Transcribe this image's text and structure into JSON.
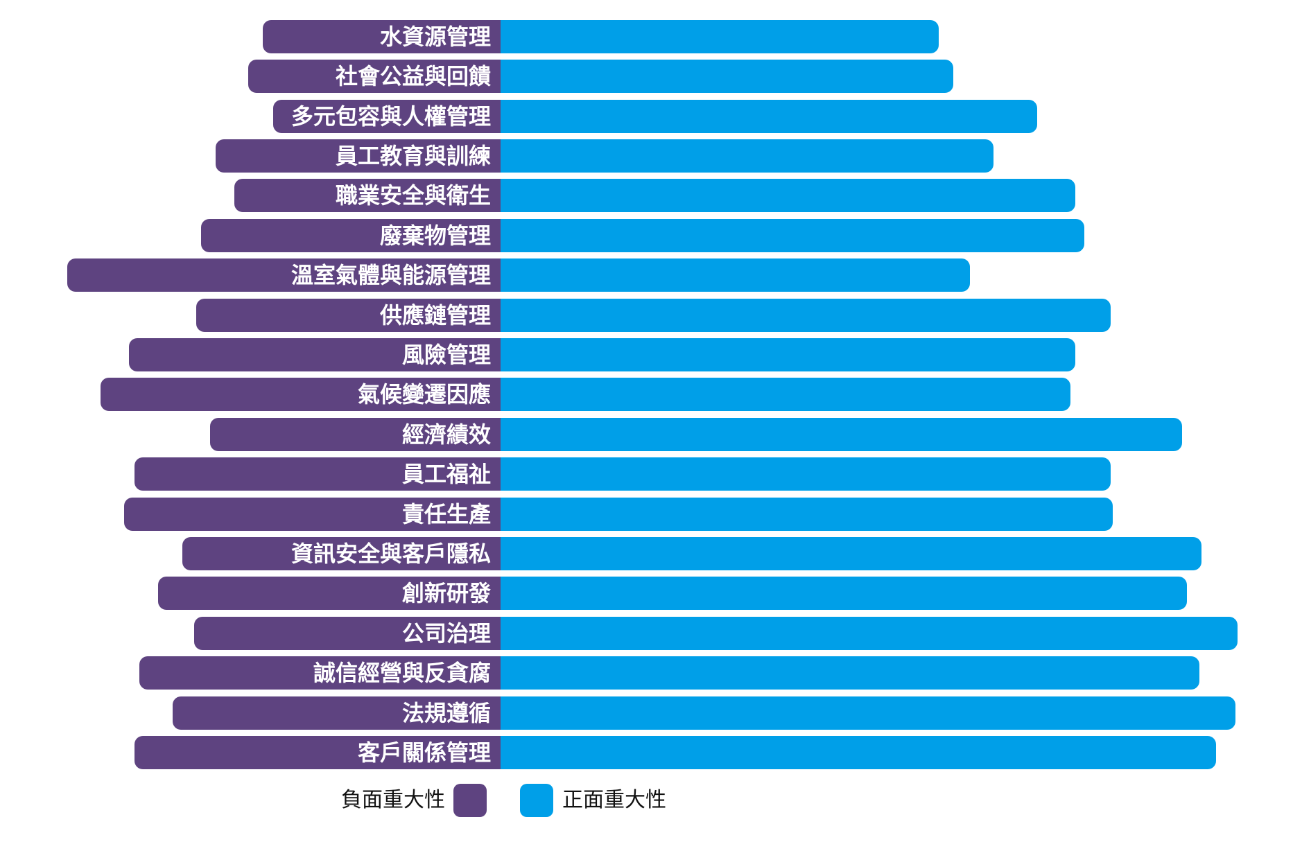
{
  "chart_data": {
    "type": "bar",
    "orientation": "horizontal",
    "diverging": true,
    "categories": [
      "水資源管理",
      "社會公益與回饋",
      "多元包容與人權管理",
      "員工教育與訓練",
      "職業安全與衛生",
      "廢棄物管理",
      "溫室氣體與能源管理",
      "供應鏈管理",
      "風險管理",
      "氣候變遷因應",
      "經濟績效",
      "員工福祉",
      "責任生產",
      "資訊安全與客戶隱私",
      "創新研發",
      "公司治理",
      "誠信經營與反貪腐",
      "法規遵循",
      "客戶關係管理"
    ],
    "series": [
      {
        "name": "負面重大性",
        "color": "#5e4380",
        "values": [
          -32.3,
          -34.2,
          -30.9,
          -38.7,
          -36.1,
          -40.6,
          -58.8,
          -41.3,
          -50.4,
          -54.3,
          -39.4,
          -49.7,
          -51.1,
          -43.2,
          -46.5,
          -41.6,
          -49.0,
          -44.5,
          -49.7
        ]
      },
      {
        "name": "正面重大性",
        "color": "#009fe8",
        "values": [
          59.5,
          61.4,
          72.8,
          66.9,
          78.0,
          79.2,
          63.7,
          82.8,
          78.0,
          77.3,
          92.5,
          82.8,
          83.1,
          95.1,
          93.1,
          100,
          94.8,
          99.7,
          97.1
        ]
      }
    ],
    "grid": false,
    "legend_position": "bottom"
  }
}
